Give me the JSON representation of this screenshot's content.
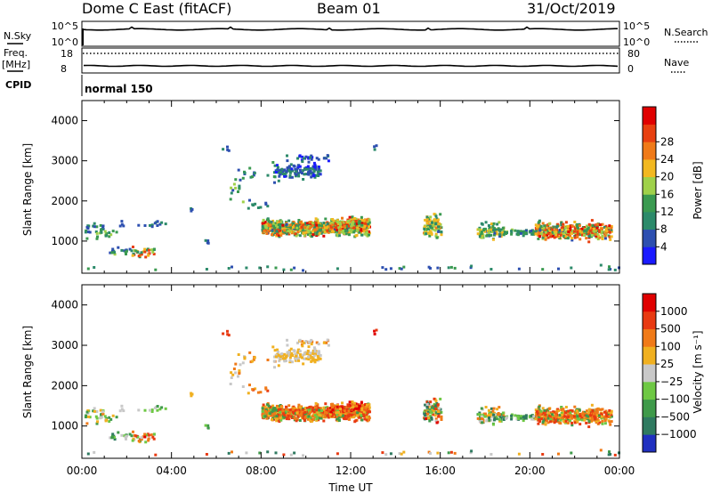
{
  "header": {
    "station": "Dome C East (fitACF)",
    "beam": "Beam 01",
    "date": "31/Oct/2019"
  },
  "top_panels": {
    "nsky_label": "N.Sky",
    "nsearch_label": "N.Search",
    "nsky_ticks": [
      "10^5",
      "10^0"
    ],
    "nsearch_ticks": [
      "10^5",
      "10^0"
    ],
    "freq_label": "Freq.",
    "freq_unit": "[MHz]",
    "freq_ticks": [
      "18",
      "8"
    ],
    "nave_label": "Nave",
    "nave_ticks": [
      "80",
      "0"
    ],
    "cpid_label": "CPID",
    "cpid_value": "normal 150"
  },
  "colors": {
    "power": [
      "#1a1aff",
      "#2d4fb0",
      "#2c8a6a",
      "#3a9a50",
      "#9fd14a",
      "#f2b820",
      "#f07a18",
      "#e84010",
      "#e00000"
    ],
    "velocity": [
      "#2030c0",
      "#2f7a60",
      "#3f9a4a",
      "#6ec844",
      "#c8c8c8",
      "#f0b020",
      "#f07a18",
      "#e83a12",
      "#e00000"
    ]
  },
  "chart_data": [
    {
      "type": "heatmap",
      "ylabel": "Slant Range [km]",
      "ylim": [
        200,
        4500
      ],
      "yticks": [
        "1000",
        "2000",
        "3000",
        "4000"
      ],
      "xlim": [
        0,
        24
      ],
      "colorbar_label": "Power [dB]",
      "colorbar_ticks": [
        "4",
        "8",
        "12",
        "16",
        "20",
        "24",
        "28"
      ],
      "colorbar_range": [
        0,
        30
      ]
    },
    {
      "type": "heatmap",
      "ylabel": "Slant Range [km]",
      "ylim": [
        200,
        4500
      ],
      "yticks": [
        "1000",
        "2000",
        "3000",
        "4000"
      ],
      "xlim": [
        0,
        24
      ],
      "xticks": [
        "00:00",
        "04:00",
        "08:00",
        "12:00",
        "16:00",
        "20:00",
        "00:00"
      ],
      "xlabel": "Time UT",
      "colorbar_label": "Velocity [m s⁻¹]",
      "colorbar_ticks": [
        "1000",
        "500",
        "100",
        "25",
        "−25",
        "−100",
        "−500",
        "−1000"
      ]
    }
  ]
}
